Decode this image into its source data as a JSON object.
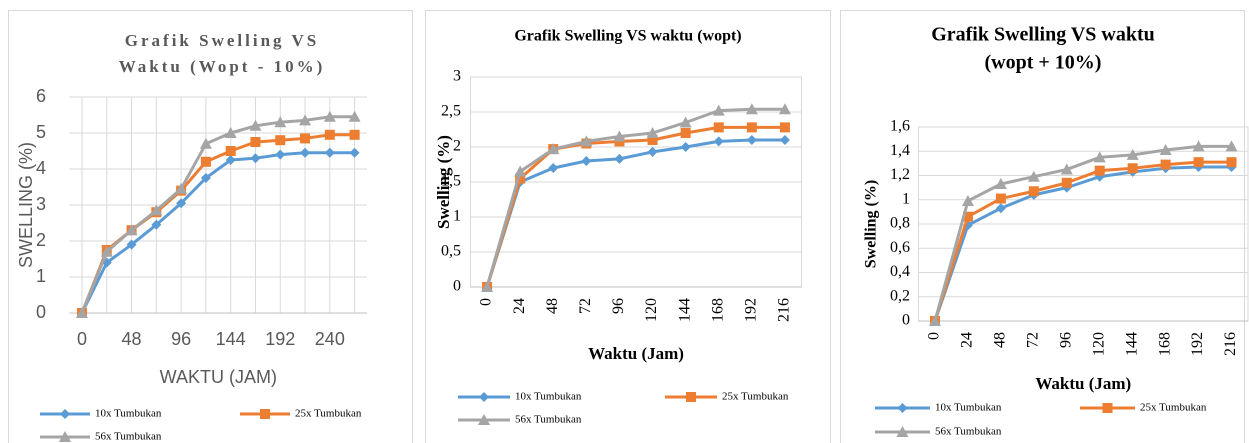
{
  "chart_data": [
    {
      "type": "line",
      "title_lines": [
        "Grafik Swelling VS",
        "Waktu (Wopt - 10%)"
      ],
      "y_label": "SWELLING (%)",
      "x_label": "WAKTU (JAM)",
      "categories": [
        0,
        null,
        48,
        null,
        96,
        null,
        144,
        null,
        192,
        null,
        240,
        null
      ],
      "ylim": [
        0,
        6
      ],
      "yticks": [
        0,
        1,
        2,
        3,
        4,
        5,
        6
      ],
      "grid": "both",
      "series": [
        {
          "name": "10x Tumbukan",
          "color": "#5b9bd5",
          "marker": "diamond",
          "values": [
            0,
            1.4,
            1.9,
            2.45,
            3.05,
            3.75,
            4.25,
            4.3,
            4.4,
            4.45,
            4.45,
            4.45
          ]
        },
        {
          "name": "25x Tumbukan",
          "color": "#ed7d31",
          "marker": "square",
          "values": [
            0,
            1.75,
            2.3,
            2.8,
            3.4,
            4.2,
            4.5,
            4.75,
            4.8,
            4.85,
            4.95,
            4.95
          ]
        },
        {
          "name": "56x Tumbukan",
          "color": "#a5a5a5",
          "marker": "triangle",
          "values": [
            0,
            1.7,
            2.3,
            2.85,
            3.45,
            4.7,
            5.0,
            5.2,
            5.3,
            5.35,
            5.45,
            5.45
          ]
        }
      ]
    },
    {
      "type": "line",
      "title_lines": [
        "Grafik Swelling VS waktu (wopt)"
      ],
      "y_label": "Swelling (%)",
      "x_label": "Waktu (Jam)",
      "categories": [
        0,
        24,
        48,
        72,
        96,
        120,
        144,
        168,
        192,
        216
      ],
      "ylim": [
        0,
        3
      ],
      "yticks": [
        0,
        {
          "value": 0.5,
          "label": "0,5"
        },
        1,
        {
          "value": 1.5,
          "label": "1,5"
        },
        2,
        {
          "value": 2.5,
          "label": "2,5"
        },
        3
      ],
      "grid": "y",
      "series": [
        {
          "name": "10x Tumbukan",
          "color": "#5b9bd5",
          "marker": "diamond",
          "values": [
            0,
            1.5,
            1.7,
            1.8,
            1.83,
            1.93,
            2.0,
            2.08,
            2.1,
            2.1
          ]
        },
        {
          "name": "25x Tumbukan",
          "color": "#ed7d31",
          "marker": "square",
          "values": [
            0,
            1.55,
            1.97,
            2.05,
            2.08,
            2.1,
            2.2,
            2.28,
            2.28,
            2.28
          ]
        },
        {
          "name": "56x Tumbukan",
          "color": "#a5a5a5",
          "marker": "triangle",
          "values": [
            0,
            1.65,
            1.97,
            2.08,
            2.15,
            2.2,
            2.35,
            2.52,
            2.54,
            2.54
          ]
        }
      ]
    },
    {
      "type": "line",
      "title_lines": [
        "Grafik Swelling VS waktu",
        "(wopt + 10%)"
      ],
      "y_label": "Swelling (%)",
      "x_label": "Waktu (Jam)",
      "categories": [
        0,
        24,
        48,
        72,
        96,
        120,
        144,
        168,
        192,
        216
      ],
      "ylim": [
        0,
        1.6
      ],
      "yticks": [
        0,
        {
          "value": 0.2,
          "label": "0,2"
        },
        {
          "value": 0.4,
          "label": "0,4"
        },
        {
          "value": 0.6,
          "label": "0,6"
        },
        {
          "value": 0.8,
          "label": "0,8"
        },
        1,
        {
          "value": 1.2,
          "label": "1,2"
        },
        {
          "value": 1.4,
          "label": "1,4"
        },
        {
          "value": 1.6,
          "label": "1,6"
        }
      ],
      "grid": "y",
      "series": [
        {
          "name": "10x Tumbukan",
          "color": "#5b9bd5",
          "marker": "diamond",
          "values": [
            0,
            0.79,
            0.93,
            1.04,
            1.1,
            1.19,
            1.23,
            1.26,
            1.27,
            1.27
          ]
        },
        {
          "name": "25x Tumbukan",
          "color": "#ed7d31",
          "marker": "square",
          "values": [
            0,
            0.86,
            1.01,
            1.07,
            1.14,
            1.24,
            1.26,
            1.29,
            1.31,
            1.31
          ]
        },
        {
          "name": "56x Tumbukan",
          "color": "#a5a5a5",
          "marker": "triangle",
          "values": [
            0,
            0.99,
            1.13,
            1.19,
            1.25,
            1.35,
            1.37,
            1.41,
            1.44,
            1.44
          ]
        }
      ]
    }
  ]
}
